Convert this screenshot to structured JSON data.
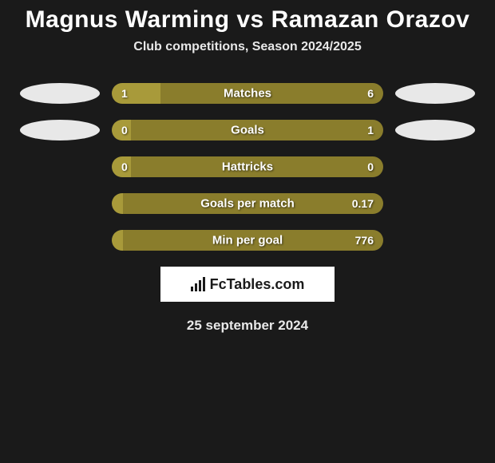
{
  "title": "Magnus Warming vs Ramazan Orazov",
  "subtitle": "Club competitions, Season 2024/2025",
  "date": "25 september 2024",
  "logo_text": "FcTables.com",
  "colors": {
    "background": "#1a1a1a",
    "bar_left": "#a89a3a",
    "bar_right": "#8a7d2c",
    "oval": "#e8e8e8",
    "text": "#ffffff"
  },
  "rows": [
    {
      "label": "Matches",
      "left_val": "1",
      "right_val": "6",
      "left_pct": 18,
      "show_ovals": true,
      "left_oval_offset": 0,
      "right_oval_offset": 0
    },
    {
      "label": "Goals",
      "left_val": "0",
      "right_val": "1",
      "left_pct": 7,
      "show_ovals": true,
      "left_oval_offset": 20,
      "right_oval_offset": 20
    },
    {
      "label": "Hattricks",
      "left_val": "0",
      "right_val": "0",
      "left_pct": 7,
      "show_ovals": false
    },
    {
      "label": "Goals per match",
      "left_val": "",
      "right_val": "0.17",
      "left_pct": 4,
      "show_ovals": false
    },
    {
      "label": "Min per goal",
      "left_val": "",
      "right_val": "776",
      "left_pct": 4,
      "show_ovals": false
    }
  ]
}
